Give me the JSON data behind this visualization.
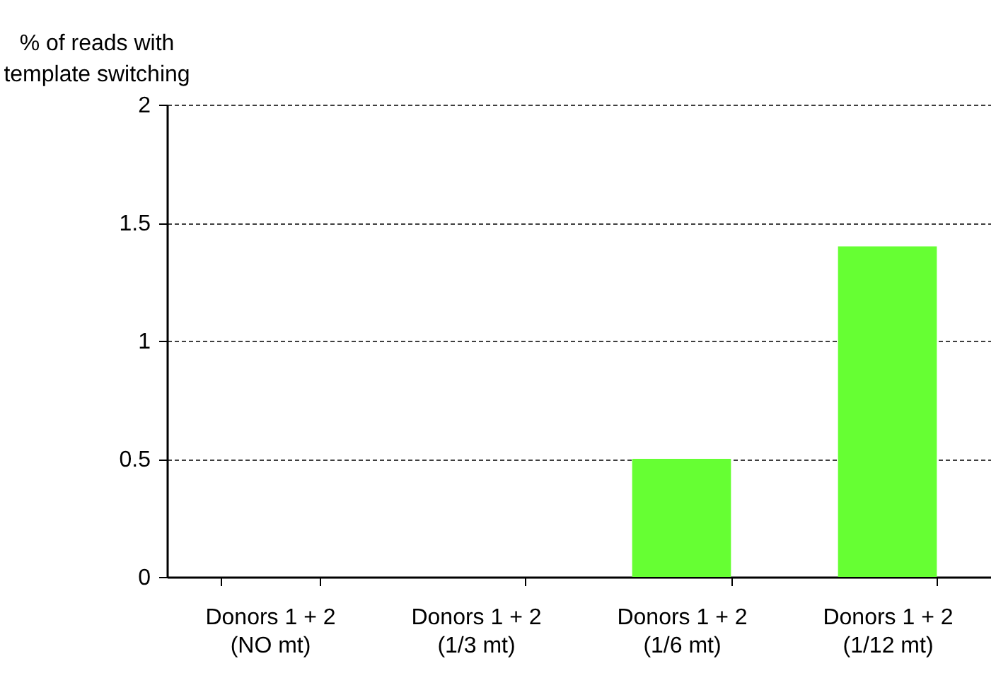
{
  "chart_data": {
    "type": "bar",
    "ylabel": "% of reads with\ntemplate switching",
    "categories": [
      "Donors 1 + 2\n(NO mt)",
      "Donors 1 + 2\n(1/3 mt)",
      "Donors 1 + 2\n(1/6 mt)",
      "Donors 1 + 2\n(1/12 mt)"
    ],
    "values": [
      0,
      0,
      0.5,
      1.4
    ],
    "color": "#66ff33",
    "ylim": [
      0,
      2
    ],
    "yticks": [
      0,
      0.5,
      1,
      1.5,
      2
    ],
    "grid": "y"
  }
}
